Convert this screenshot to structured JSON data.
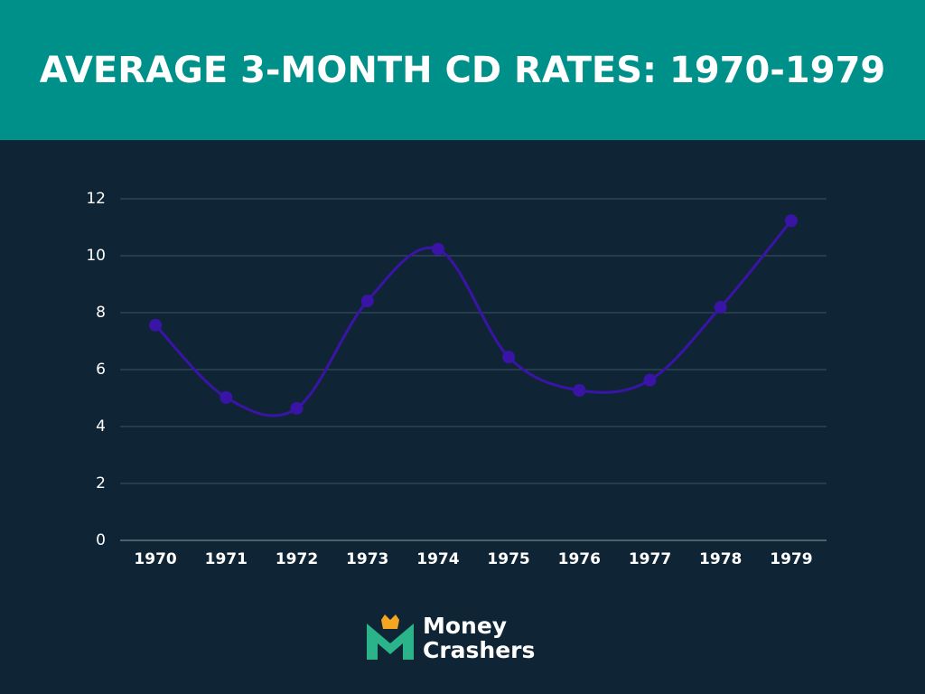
{
  "chart_data": {
    "type": "line",
    "title": "AVERAGE 3-MONTH CD RATES: 1970-1979",
    "categories": [
      "1970",
      "1971",
      "1972",
      "1973",
      "1974",
      "1975",
      "1976",
      "1977",
      "1978",
      "1979"
    ],
    "values": [
      7.56,
      5.02,
      4.64,
      8.41,
      10.23,
      6.44,
      5.27,
      5.63,
      8.19,
      11.23
    ],
    "color": "#3a14a6",
    "smooth": true,
    "ylim": [
      0,
      12
    ],
    "yticks": [
      0,
      2,
      4,
      6,
      8,
      10,
      12
    ],
    "grid": true
  },
  "brand": [
    "Money",
    "Crashers"
  ]
}
